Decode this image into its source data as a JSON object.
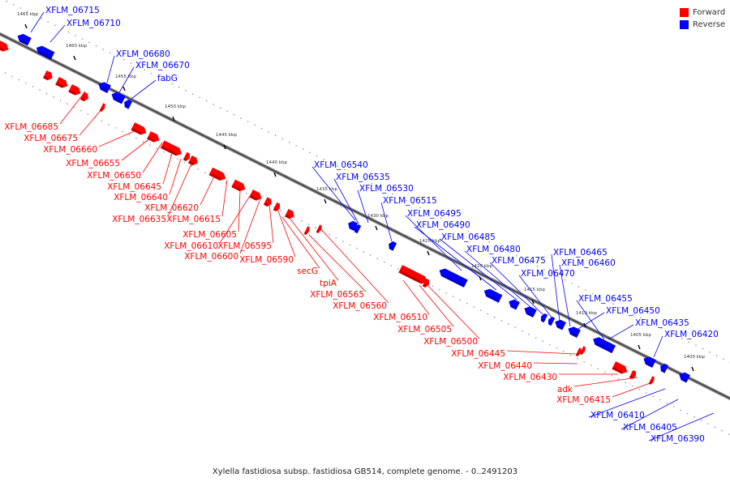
{
  "caption": "Xylella fastidiosa subsp. fastidiosa GB514, complete genome. - 0..2491203",
  "legend": {
    "forward_label": "Forward",
    "reverse_label": "Reverse",
    "forward_color": "#ff0000",
    "reverse_color": "#0000ff"
  },
  "track": {
    "kbp_unit": "kbp",
    "ticks_kbp": [
      1400,
      1405,
      1410,
      1415,
      1420,
      1425,
      1430,
      1435,
      1440,
      1445,
      1450,
      1455,
      1460,
      1465
    ]
  },
  "genes": {
    "reverse": [
      "XFLM_06715",
      "XFLM_06710",
      "XFLM_06680",
      "XFLM_06670",
      "fabG",
      "XFLM_06540",
      "XFLM_06535",
      "XFLM_06530",
      "XFLM_06515",
      "XFLM_06495",
      "XFLM_06490",
      "XFLM_06485",
      "XFLM_06480",
      "XFLM_06475",
      "XFLM_06470",
      "XFLM_06465",
      "XFLM_06460",
      "XFLM_06455",
      "XFLM_06450",
      "XFLM_06435",
      "XFLM_06420",
      "XFLM_06410",
      "XFLM_06405",
      "XFLM_06390"
    ],
    "forward": [
      "XFLM_06685",
      "XFLM_06675",
      "XFLM_06660",
      "XFLM_06655",
      "XFLM_06650",
      "XFLM_06645",
      "XFLM_06640",
      "XFLM_06635",
      "XFLM_06620",
      "XFLM_06615",
      "XFLM_06605",
      "XFLM_06610",
      "XFLM_06600",
      "XFLM_06595",
      "XFLM_06590",
      "secG",
      "tpiA",
      "XFLM_06565",
      "XFLM_06560",
      "XFLM_06510",
      "XFLM_06505",
      "XFLM_06500",
      "XFLM_06445",
      "XFLM_06440",
      "XFLM_06430",
      "adk",
      "XFLM_06415"
    ]
  }
}
